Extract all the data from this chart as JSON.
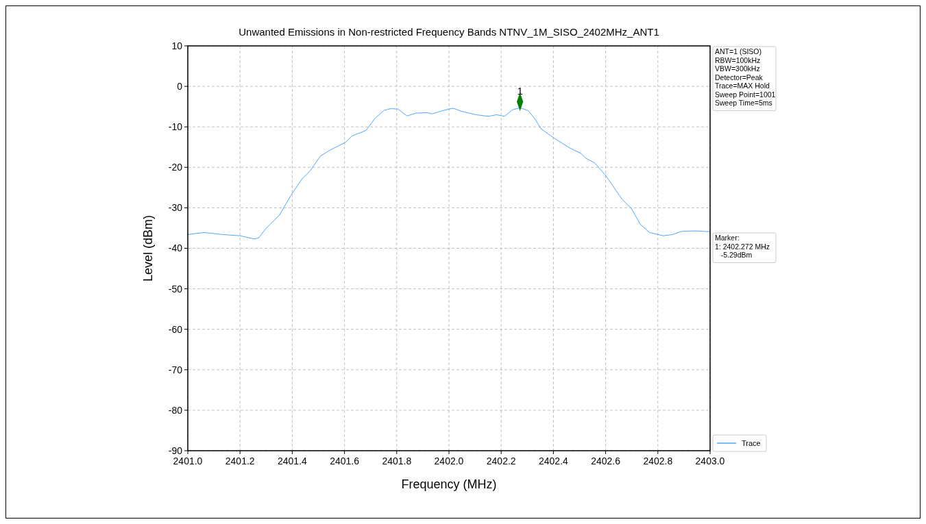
{
  "chart_data": {
    "type": "line",
    "title": "Unwanted Emissions in Non-restricted Frequency Bands NTNV_1M_SISO_2402MHz_ANT1",
    "xlabel": "Frequency (MHz)",
    "ylabel": "Level (dBm)",
    "xlim": [
      2401.0,
      2403.0
    ],
    "xticks": [
      {
        "value": 2401.0,
        "label": "2401.0"
      },
      {
        "value": 2401.2,
        "label": "2401.2"
      },
      {
        "value": 2401.4,
        "label": "2401.4"
      },
      {
        "value": 2401.6,
        "label": "2401.6"
      },
      {
        "value": 2401.8,
        "label": "2401.8"
      },
      {
        "value": 2402.0,
        "label": "2402.0"
      },
      {
        "value": 2402.2,
        "label": "2402.2"
      },
      {
        "value": 2402.4,
        "label": "2402.4"
      },
      {
        "value": 2402.6,
        "label": "2402.6"
      },
      {
        "value": 2402.8,
        "label": "2402.8"
      },
      {
        "value": 2403.0,
        "label": "2403.0"
      }
    ],
    "ylim": [
      -90,
      10
    ],
    "yticks": [
      -90,
      -80,
      -70,
      -60,
      -50,
      -40,
      -30,
      -20,
      -10,
      0,
      10
    ],
    "grid": true,
    "legend": "bottom right",
    "series": [
      {
        "name": "Trace",
        "color": "#4da6ff",
        "marker": "none",
        "x": [
          2401.0,
          2401.063,
          2401.133,
          2401.2,
          2401.255,
          2401.272,
          2401.298,
          2401.351,
          2401.394,
          2401.438,
          2401.469,
          2401.508,
          2401.543,
          2401.604,
          2401.63,
          2401.682,
          2401.717,
          2401.752,
          2401.778,
          2401.805,
          2401.839,
          2401.874,
          2401.918,
          2401.935,
          2401.981,
          2402.016,
          2402.05,
          2402.103,
          2402.151,
          2402.182,
          2402.213,
          2402.243,
          2402.272,
          2402.304,
          2402.331,
          2402.353,
          2402.401,
          2402.462,
          2402.506,
          2402.523,
          2402.558,
          2402.6,
          2402.663,
          2402.698,
          2402.733,
          2402.768,
          2402.821,
          2402.856,
          2402.891,
          2402.943,
          2403.0
        ],
        "values": [
          -36.6,
          -36.1,
          -36.6,
          -36.9,
          -37.7,
          -37.4,
          -35.2,
          -31.8,
          -27.0,
          -22.8,
          -20.8,
          -17.2,
          -15.8,
          -13.8,
          -12.2,
          -10.9,
          -7.9,
          -5.9,
          -5.5,
          -5.6,
          -7.3,
          -6.6,
          -6.5,
          -6.8,
          -5.9,
          -5.4,
          -6.2,
          -7.0,
          -7.4,
          -7.0,
          -7.4,
          -5.8,
          -5.29,
          -6.0,
          -8.2,
          -10.5,
          -12.7,
          -15.2,
          -16.6,
          -17.7,
          -18.9,
          -22.0,
          -27.9,
          -30.1,
          -34.1,
          -36.1,
          -36.9,
          -36.6,
          -35.8,
          -35.7,
          -35.9
        ]
      },
      {
        "color": "#007f00",
        "type": "scatter",
        "marker": "diamond",
        "x": [
          2402.272
        ],
        "values": [
          -3.8
        ]
      }
    ],
    "annotations": [
      {
        "text": "1",
        "x": 2402.272,
        "y": -3.8
      },
      "ANT=1 (SISO)\nRBW=100kHz\nVBW=300kHz\nDetector=Peak\nTrace=MAX Hold\nSweep Point=1001\nSweep Time=5ms",
      "Marker:\n1: 2402.272 MHz\n   -5.29dBm"
    ]
  }
}
